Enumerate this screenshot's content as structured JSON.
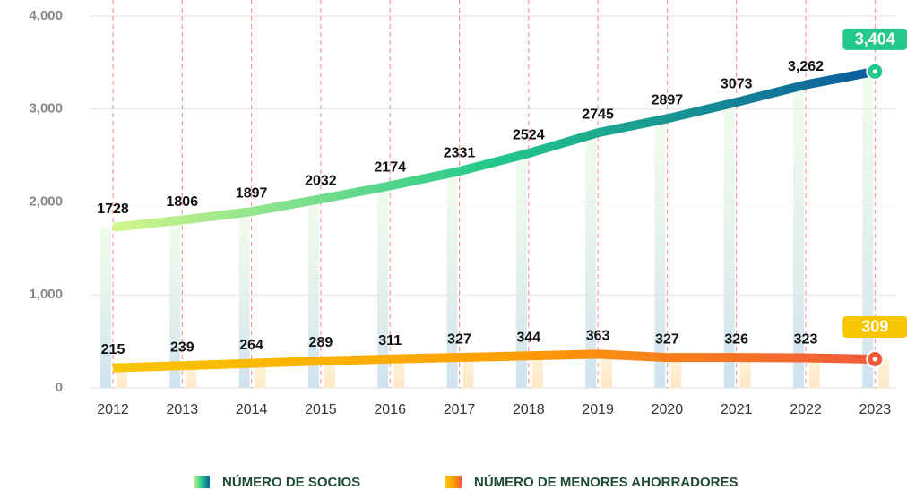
{
  "chart_data": {
    "type": "line",
    "categories": [
      "2012",
      "2013",
      "2014",
      "2015",
      "2016",
      "2017",
      "2018",
      "2019",
      "2020",
      "2021",
      "2022",
      "2023"
    ],
    "series": [
      {
        "name": "NÚMERO DE SOCIOS",
        "colors": [
          "#d4f58c",
          "#22c98a",
          "#0b5a9e"
        ],
        "values": [
          1728,
          1806,
          1897,
          2032,
          2174,
          2331,
          2524,
          2745,
          2897,
          3073,
          3262,
          3404
        ],
        "value_labels": [
          "1728",
          "1806",
          "1897",
          "2032",
          "2174",
          "2331",
          "2524",
          "2745",
          "2897",
          "3073",
          "3,262",
          "3,404"
        ]
      },
      {
        "name": "NÚMERO DE MENORES AHORRADORES",
        "colors": [
          "#f7c600",
          "#ffa000",
          "#f05a3a"
        ],
        "values": [
          215,
          239,
          264,
          289,
          311,
          327,
          344,
          363,
          327,
          326,
          323,
          309
        ]
      }
    ],
    "ylim": [
      0,
      4000
    ],
    "yticks": [
      0,
      {
        "value": 1000,
        "label": "1,000"
      },
      {
        "value": 2000,
        "label": "2,000"
      },
      {
        "value": 3000,
        "label": "3,000"
      },
      {
        "value": 4000,
        "label": "4,000"
      }
    ],
    "grid": true
  }
}
